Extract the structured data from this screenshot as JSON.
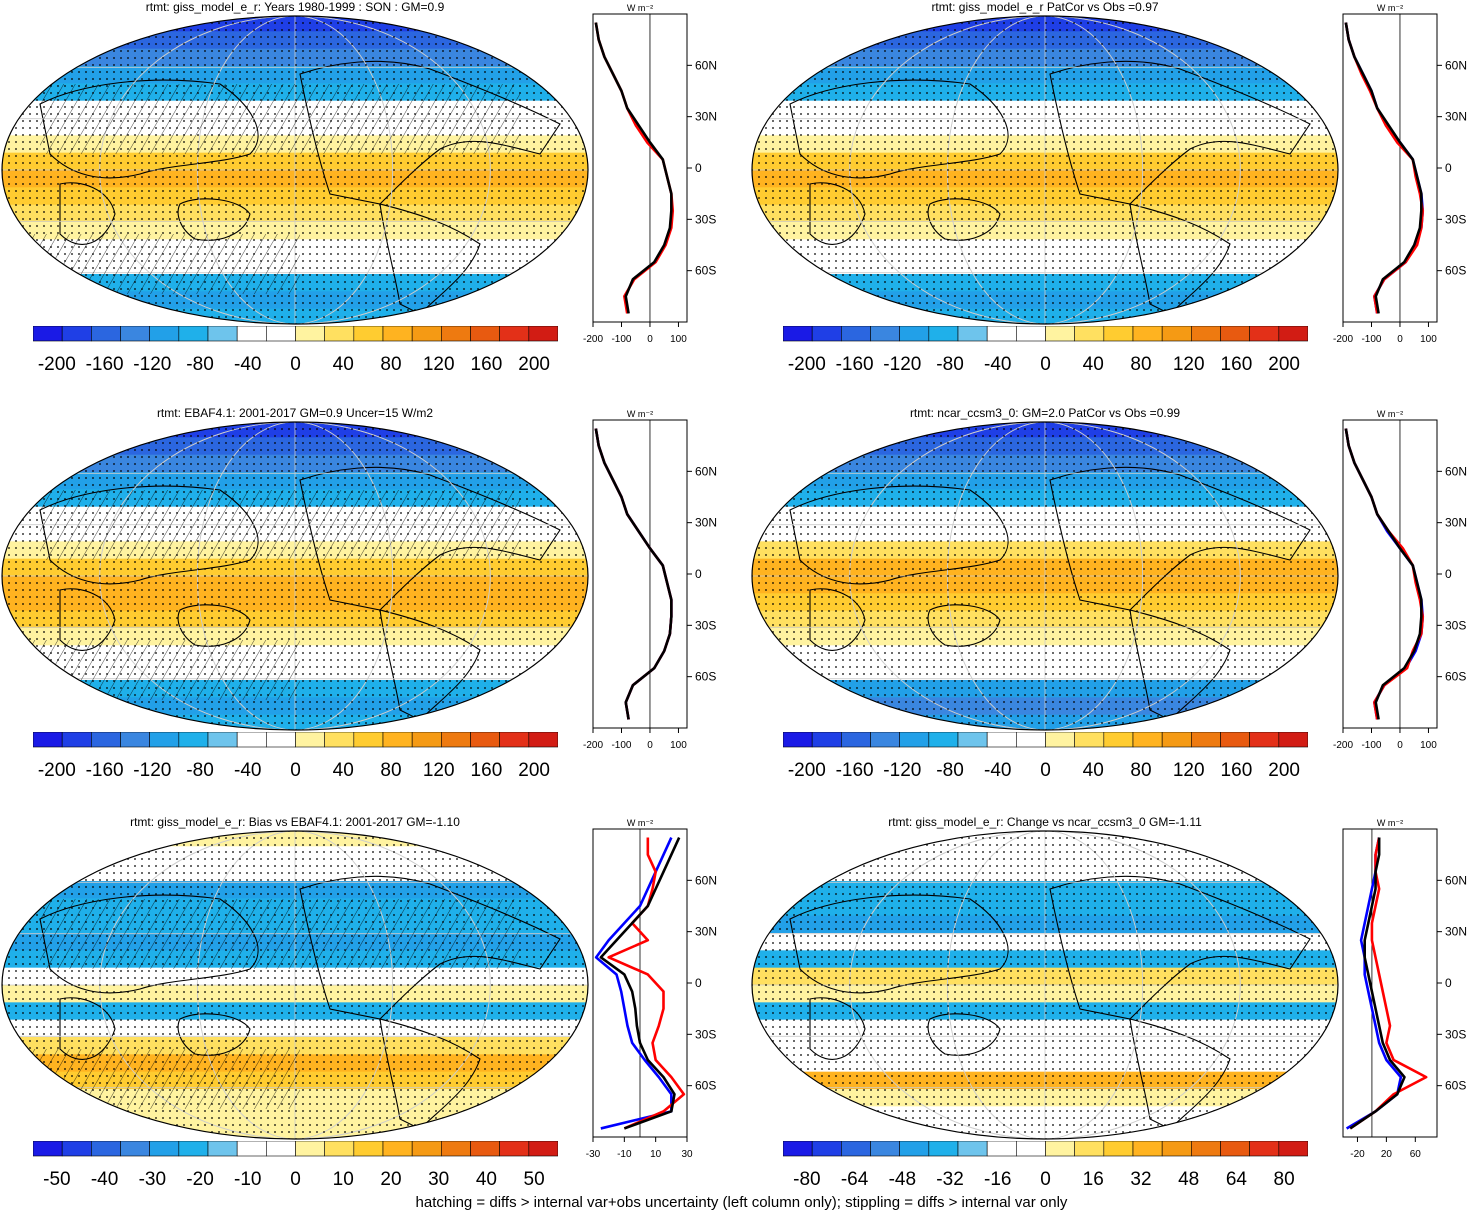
{
  "footer": "hatching = diffs > internal var+obs uncertainty (left column only); stippling = diffs > internal var only",
  "colors": {
    "cold": [
      "#1a1ae6",
      "#1f3fe6",
      "#2b66e0",
      "#3a86e0",
      "#22a0e8",
      "#1fb0ea",
      "#6ec4ec"
    ],
    "white": "#ffffff",
    "warm": [
      "#fff3a0",
      "#ffe060",
      "#ffcc30",
      "#ffb320",
      "#f59a14",
      "#ee7a10",
      "#e85a10",
      "#e33018",
      "#d21c14"
    ],
    "obs_line": "#000000",
    "model_line": "#ff0000",
    "ref_line": "#0000ff"
  },
  "chart_data": [
    {
      "type": "heatmap",
      "title": "rtmt: giss_model_e_r: Years 1980-1999 : SON : GM=0.9",
      "colorbar": {
        "labels": [
          "-200",
          "-160",
          "-120",
          "-80",
          "-40",
          "0",
          "40",
          "80",
          "120",
          "160",
          "200"
        ]
      },
      "zonal_profile": {
        "unit": "W m⁻²",
        "x_ticks": [
          "-200",
          "-100",
          "0",
          "100"
        ],
        "y_ticks": [
          "60N",
          "30N",
          "0",
          "30S",
          "60S"
        ],
        "xlim": [
          -200,
          130
        ],
        "ylim": [
          -90,
          90
        ],
        "lat": [
          -85,
          -75,
          -65,
          -55,
          -45,
          -35,
          -25,
          -15,
          -5,
          5,
          15,
          25,
          35,
          45,
          55,
          65,
          75,
          85
        ],
        "model": [
          -80,
          -90,
          -55,
          20,
          55,
          75,
          80,
          75,
          60,
          45,
          -10,
          -50,
          -80,
          -100,
          -130,
          -160,
          -180,
          -190
        ],
        "obs": [
          -75,
          -85,
          -60,
          15,
          50,
          70,
          75,
          75,
          60,
          45,
          0,
          -40,
          -80,
          -100,
          -130,
          -160,
          -180,
          -190
        ]
      }
    },
    {
      "type": "heatmap",
      "title": "rtmt: giss_model_e_r PatCor vs Obs =0.97",
      "colorbar": {
        "labels": [
          "-200",
          "-160",
          "-120",
          "-80",
          "-40",
          "0",
          "40",
          "80",
          "120",
          "160",
          "200"
        ]
      },
      "zonal_profile": {
        "unit": "W m⁻²",
        "x_ticks": [
          "-200",
          "-100",
          "0",
          "100"
        ],
        "y_ticks": [
          "60N",
          "30N",
          "0",
          "30S",
          "60S"
        ],
        "xlim": [
          -200,
          130
        ],
        "ylim": [
          -90,
          90
        ],
        "lat": [
          -85,
          -75,
          -65,
          -55,
          -45,
          -35,
          -25,
          -15,
          -5,
          5,
          15,
          25,
          35,
          45,
          55,
          65,
          75,
          85
        ],
        "model": [
          -80,
          -90,
          -55,
          20,
          60,
          75,
          80,
          70,
          55,
          45,
          -10,
          -50,
          -80,
          -105,
          -135,
          -160,
          -180,
          -190
        ],
        "obs": [
          -75,
          -85,
          -60,
          15,
          50,
          70,
          75,
          75,
          60,
          45,
          0,
          -40,
          -80,
          -100,
          -130,
          -160,
          -180,
          -190
        ],
        "ref": [
          -80,
          -90,
          -55,
          20,
          55,
          75,
          80,
          75,
          60,
          45,
          0,
          -45,
          -80,
          -100,
          -130,
          -160,
          -180,
          -190
        ]
      }
    },
    {
      "type": "heatmap",
      "title": "rtmt: EBAF4.1: 2001-2017 GM=0.9 Uncer=15 W/m2",
      "colorbar": {
        "labels": [
          "-200",
          "-160",
          "-120",
          "-80",
          "-40",
          "0",
          "40",
          "80",
          "120",
          "160",
          "200"
        ]
      },
      "zonal_profile": {
        "unit": "W m⁻²",
        "x_ticks": [
          "-200",
          "-100",
          "0",
          "100"
        ],
        "y_ticks": [
          "60N",
          "30N",
          "0",
          "30S",
          "60S"
        ],
        "xlim": [
          -200,
          130
        ],
        "ylim": [
          -90,
          90
        ],
        "lat": [
          -85,
          -75,
          -65,
          -55,
          -45,
          -35,
          -25,
          -15,
          -5,
          5,
          15,
          25,
          35,
          45,
          55,
          65,
          75,
          85
        ],
        "model": [
          -75,
          -85,
          -60,
          15,
          50,
          70,
          75,
          75,
          60,
          45,
          0,
          -40,
          -80,
          -100,
          -130,
          -160,
          -180,
          -190
        ],
        "obs": [
          -75,
          -85,
          -60,
          15,
          50,
          70,
          75,
          75,
          60,
          45,
          0,
          -40,
          -80,
          -100,
          -130,
          -160,
          -180,
          -190
        ],
        "ref": [
          -75,
          -85,
          -60,
          15,
          50,
          70,
          75,
          75,
          60,
          45,
          0,
          -40,
          -80,
          -100,
          -130,
          -160,
          -180,
          -190
        ]
      }
    },
    {
      "type": "heatmap",
      "title": "rtmt: ncar_ccsm3_0: GM=2.0 PatCor vs Obs =0.99",
      "colorbar": {
        "labels": [
          "-200",
          "-160",
          "-120",
          "-80",
          "-40",
          "0",
          "40",
          "80",
          "120",
          "160",
          "200"
        ]
      },
      "zonal_profile": {
        "unit": "W m⁻²",
        "x_ticks": [
          "-200",
          "-100",
          "0",
          "100"
        ],
        "y_ticks": [
          "60N",
          "30N",
          "0",
          "30S",
          "60S"
        ],
        "xlim": [
          -200,
          130
        ],
        "ylim": [
          -90,
          90
        ],
        "lat": [
          -85,
          -75,
          -65,
          -55,
          -45,
          -35,
          -25,
          -15,
          -5,
          5,
          15,
          25,
          35,
          45,
          55,
          65,
          75,
          85
        ],
        "model": [
          -80,
          -90,
          -55,
          25,
          45,
          75,
          80,
          70,
          55,
          45,
          10,
          -40,
          -80,
          -100,
          -130,
          -160,
          -180,
          -190
        ],
        "obs": [
          -75,
          -85,
          -60,
          15,
          50,
          70,
          75,
          75,
          60,
          45,
          0,
          -40,
          -80,
          -100,
          -130,
          -160,
          -180,
          -190
        ],
        "ref": [
          -80,
          -90,
          -55,
          20,
          55,
          75,
          80,
          75,
          60,
          45,
          0,
          -45,
          -80,
          -100,
          -130,
          -160,
          -180,
          -190
        ]
      }
    },
    {
      "type": "heatmap",
      "title": "rtmt: giss_model_e_r: Bias vs EBAF4.1: 2001-2017  GM=-1.10",
      "colorbar": {
        "labels": [
          "-50",
          "-40",
          "-30",
          "-20",
          "-10",
          "0",
          "10",
          "20",
          "30",
          "40",
          "50"
        ]
      },
      "zonal_profile": {
        "unit": "W m⁻²",
        "x_ticks": [
          "-30",
          "-10",
          "10",
          "30"
        ],
        "y_ticks": [
          "60N",
          "30N",
          "0",
          "30S",
          "60S"
        ],
        "xlim": [
          -30,
          30
        ],
        "ylim": [
          -90,
          90
        ],
        "lat": [
          -85,
          -75,
          -65,
          -55,
          -45,
          -35,
          -25,
          -15,
          -5,
          5,
          15,
          25,
          35,
          45,
          55,
          65,
          75,
          85
        ],
        "model": [
          -10,
          15,
          28,
          20,
          10,
          8,
          12,
          15,
          15,
          5,
          -20,
          5,
          -5,
          5,
          8,
          10,
          5,
          5
        ],
        "obs": [
          -10,
          20,
          22,
          15,
          5,
          0,
          -2,
          -3,
          -5,
          -10,
          -25,
          -15,
          -5,
          5,
          10,
          15,
          20,
          25
        ],
        "ref": [
          -25,
          20,
          20,
          12,
          3,
          -5,
          -8,
          -10,
          -12,
          -15,
          -28,
          -20,
          -10,
          0,
          5,
          10,
          15,
          20
        ]
      }
    },
    {
      "type": "heatmap",
      "title": "rtmt: giss_model_e_r: Change vs ncar_ccsm3_0 GM=-1.11",
      "colorbar": {
        "labels": [
          "-80",
          "-64",
          "-48",
          "-32",
          "-16",
          "0",
          "16",
          "32",
          "48",
          "64",
          "80"
        ]
      },
      "zonal_profile": {
        "unit": "W m⁻²",
        "x_ticks": [
          "-20",
          "20",
          "60"
        ],
        "y_ticks": [
          "60N",
          "30N",
          "0",
          "30S",
          "60S"
        ],
        "xlim": [
          -40,
          90
        ],
        "ylim": [
          -90,
          90
        ],
        "lat": [
          -85,
          -75,
          -65,
          -55,
          -45,
          -35,
          -25,
          -15,
          -5,
          5,
          15,
          25,
          35,
          45,
          55,
          65,
          75,
          85
        ],
        "model": [
          -30,
          5,
          30,
          75,
          30,
          20,
          25,
          20,
          15,
          10,
          5,
          0,
          0,
          5,
          10,
          5,
          5,
          10
        ],
        "obs": [
          -30,
          5,
          35,
          45,
          25,
          15,
          10,
          5,
          0,
          -5,
          -10,
          -10,
          -5,
          0,
          5,
          5,
          10,
          10
        ],
        "ref": [
          -35,
          5,
          35,
          40,
          20,
          10,
          5,
          0,
          -5,
          -10,
          -10,
          -15,
          -10,
          -5,
          0,
          5,
          5,
          10
        ]
      }
    }
  ]
}
